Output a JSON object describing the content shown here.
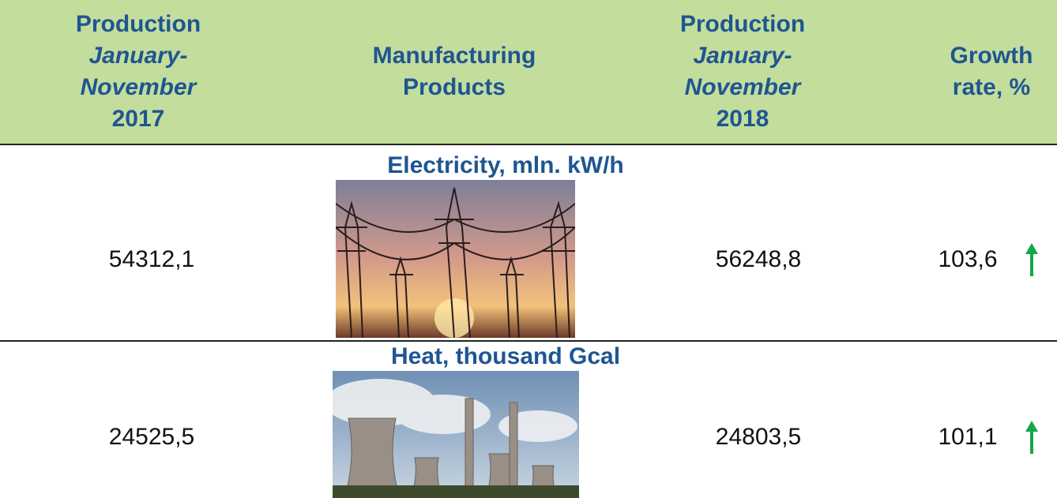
{
  "header": {
    "columns": [
      {
        "label": "Production",
        "period": "January-November",
        "year": "2017"
      },
      {
        "label": "Manufacturing Products"
      },
      {
        "label": "Production",
        "period": "January-November",
        "year": "2018"
      },
      {
        "label": "Growth rate, %"
      }
    ]
  },
  "rows": [
    {
      "title": "Electricity, mln. kW/h",
      "values": [
        "54312,1",
        "56248,8",
        "103,6"
      ]
    },
    {
      "title": "Heat, thousand Gcal",
      "values": [
        "24525,5",
        "24803,5",
        "101,1"
      ]
    }
  ]
}
